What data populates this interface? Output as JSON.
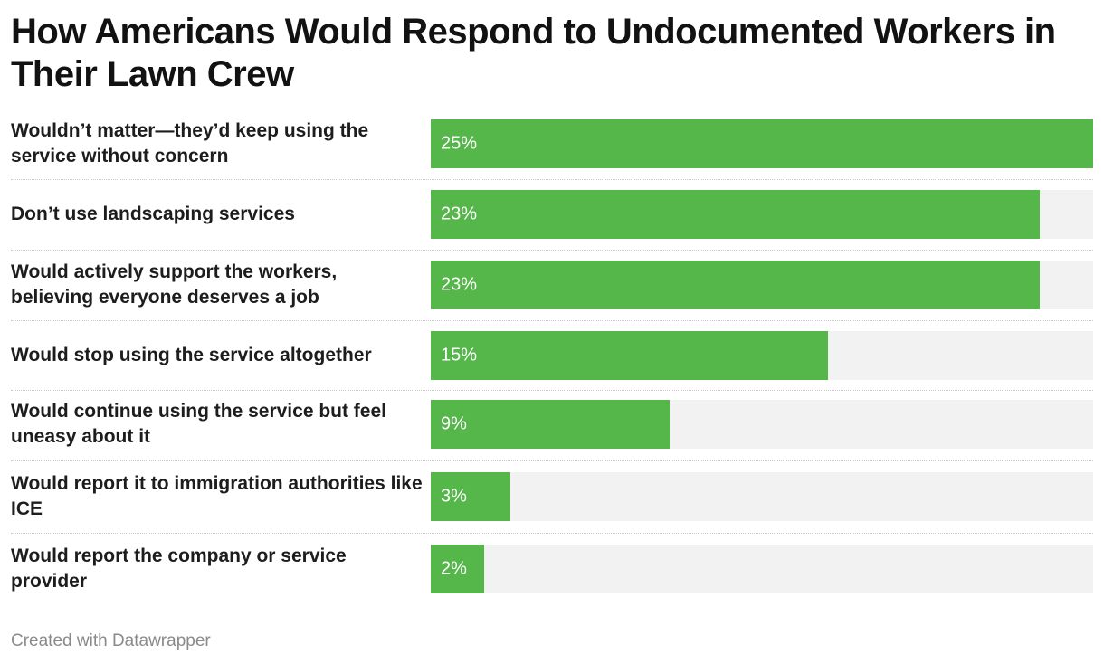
{
  "chart_data": {
    "type": "bar",
    "orientation": "horizontal",
    "title": "How Americans Would Respond to Undocumented Workers in Their Lawn Crew",
    "categories": [
      "Wouldn’t matter—they’d keep using the service without concern",
      "Don’t use landscaping services",
      "Would actively support the workers, believing everyone deserves a job",
      "Would stop using the service altogether",
      "Would continue using the service but feel uneasy about it",
      "Would report it to immigration authorities like ICE",
      "Would report the company or service provider"
    ],
    "values": [
      25,
      23,
      23,
      15,
      9,
      3,
      2
    ],
    "data_labels": [
      "25%",
      "23%",
      "23%",
      "15%",
      "9%",
      "3%",
      "2%"
    ],
    "xlim": [
      0,
      25
    ],
    "xlabel": "",
    "ylabel": "",
    "grid": false,
    "legend": "none",
    "colors": {
      "bar": "#55b74a",
      "track": "#f2f2f2",
      "label_text": "#ffffff"
    }
  },
  "footer": {
    "credit": "Created with Datawrapper"
  }
}
